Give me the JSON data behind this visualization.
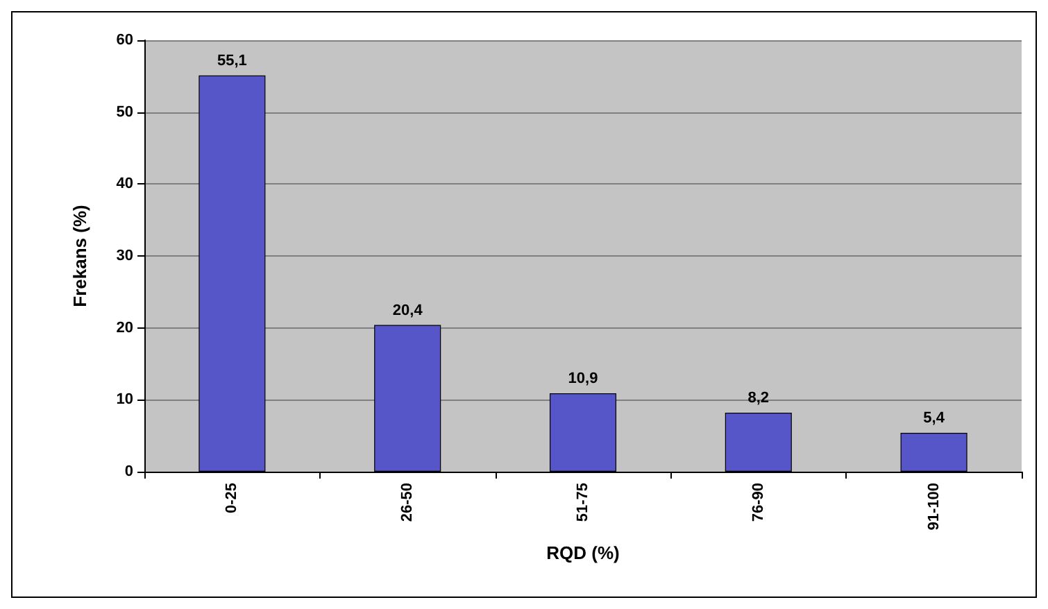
{
  "chart_data": {
    "type": "bar",
    "xlabel": "RQD (%)",
    "ylabel": "Frekans (%)",
    "categories": [
      "0-25",
      "26-50",
      "51-75",
      "76-90",
      "91-100"
    ],
    "values": [
      55.1,
      20.4,
      10.9,
      8.2,
      5.4
    ],
    "value_labels": [
      "55,1",
      "20,4",
      "10,9",
      "8,2",
      "5,4"
    ],
    "color": "#5656c8",
    "ylim": [
      0,
      60
    ],
    "yticks": [
      0,
      10,
      20,
      30,
      40,
      50,
      60
    ],
    "grid": "y"
  }
}
